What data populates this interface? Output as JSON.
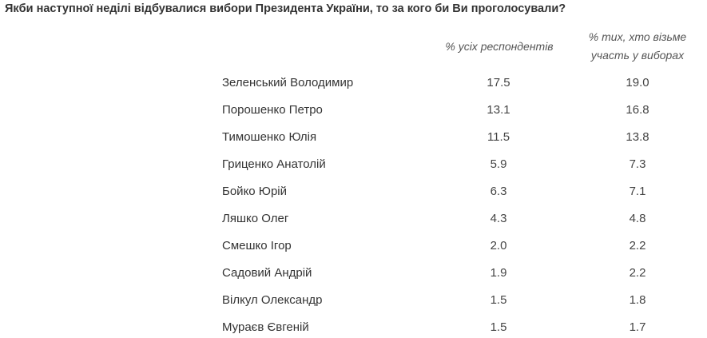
{
  "title": "Якби наступної неділі відбувалися вибори Президента України, то за кого би Ви проголосували?",
  "table": {
    "header": [
      "% усіх респондентів",
      "% тих, хто візьме участь у виборах"
    ],
    "rows": [
      [
        "Зеленський Володимир",
        "17.5",
        "19.0"
      ],
      [
        "Порошенко Петро",
        "13.1",
        "16.8"
      ],
      [
        "Тимошенко Юлія",
        "11.5",
        "13.8"
      ],
      [
        "Гриценко Анатолій",
        "5.9",
        "7.3"
      ],
      [
        "Бойко Юрій",
        "6.3",
        "7.1"
      ],
      [
        "Ляшко Олег",
        "4.3",
        "4.8"
      ],
      [
        "Смешко Ігор",
        "2.0",
        "2.2"
      ],
      [
        "Садовий Андрій",
        "1.9",
        "2.2"
      ],
      [
        "Вілкул Олександр",
        "1.5",
        "1.8"
      ],
      [
        "Мураєв Євгеній",
        "1.5",
        "1.7"
      ]
    ]
  }
}
